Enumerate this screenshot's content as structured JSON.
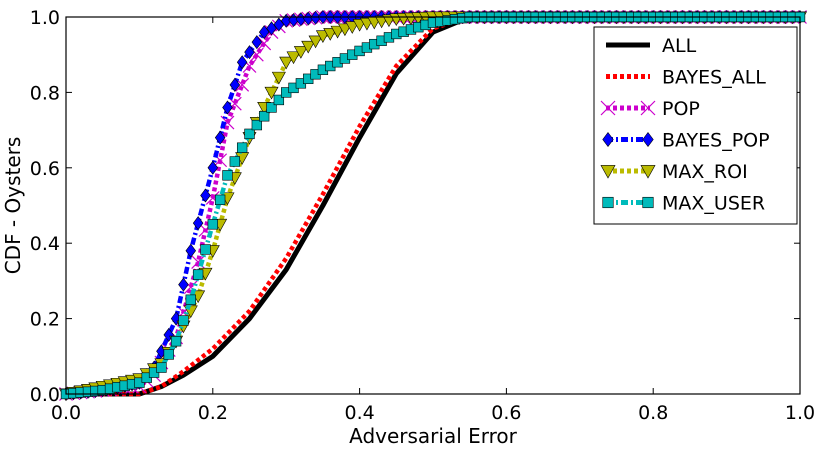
{
  "chart_data": {
    "type": "line",
    "title": "",
    "xlabel": "Adversarial Error",
    "ylabel": "CDF - Oysters",
    "xlim": [
      0.0,
      1.0
    ],
    "ylim": [
      0.0,
      1.0
    ],
    "xticks": [
      "0.0",
      "0.2",
      "0.4",
      "0.6",
      "0.8",
      "1.0"
    ],
    "yticks": [
      "0.0",
      "0.2",
      "0.4",
      "0.6",
      "0.8",
      "1.0"
    ],
    "legend_position": "top-right",
    "series": [
      {
        "name": "ALL",
        "color": "#000000",
        "style": "solid",
        "marker": "none",
        "x": [
          0.0,
          0.05,
          0.1,
          0.13,
          0.16,
          0.2,
          0.25,
          0.3,
          0.35,
          0.4,
          0.45,
          0.5,
          0.55,
          0.6,
          1.0
        ],
        "y": [
          0.0,
          0.0,
          0.0,
          0.02,
          0.05,
          0.1,
          0.2,
          0.33,
          0.5,
          0.68,
          0.85,
          0.96,
          1.0,
          1.0,
          1.0
        ]
      },
      {
        "name": "BAYES_ALL",
        "color": "#ff0000",
        "style": "dotted",
        "marker": "none",
        "x": [
          0.0,
          0.05,
          0.1,
          0.13,
          0.16,
          0.2,
          0.25,
          0.3,
          0.35,
          0.4,
          0.45,
          0.5,
          0.55,
          0.6,
          1.0
        ],
        "y": [
          0.0,
          0.0,
          0.0,
          0.02,
          0.06,
          0.12,
          0.22,
          0.36,
          0.53,
          0.71,
          0.87,
          0.97,
          1.0,
          1.0,
          1.0
        ]
      },
      {
        "name": "POP",
        "color": "#cc00cc",
        "style": "dotted",
        "marker": "x",
        "x": [
          0.0,
          0.05,
          0.1,
          0.12,
          0.15,
          0.18,
          0.2,
          0.22,
          0.25,
          0.28,
          0.3,
          0.35,
          0.4,
          0.45,
          1.0
        ],
        "y": [
          0.0,
          0.01,
          0.02,
          0.05,
          0.15,
          0.35,
          0.52,
          0.72,
          0.87,
          0.96,
          0.99,
          1.0,
          1.0,
          1.0,
          1.0
        ]
      },
      {
        "name": "BAYES_POP",
        "color": "#0000ff",
        "style": "dashdot",
        "marker": "diamond",
        "x": [
          0.0,
          0.05,
          0.1,
          0.12,
          0.15,
          0.17,
          0.2,
          0.22,
          0.24,
          0.27,
          0.3,
          0.35,
          0.4,
          0.45,
          1.0
        ],
        "y": [
          0.0,
          0.01,
          0.03,
          0.07,
          0.2,
          0.38,
          0.6,
          0.76,
          0.88,
          0.96,
          0.99,
          1.0,
          1.0,
          1.0,
          1.0
        ]
      },
      {
        "name": "MAX_ROI",
        "color": "#bbbb00",
        "style": "dotted",
        "marker": "triangle-down",
        "x": [
          0.0,
          0.05,
          0.1,
          0.13,
          0.15,
          0.18,
          0.2,
          0.22,
          0.25,
          0.28,
          0.3,
          0.35,
          0.4,
          0.45,
          0.5,
          0.6,
          1.0
        ],
        "y": [
          0.0,
          0.02,
          0.04,
          0.08,
          0.14,
          0.26,
          0.38,
          0.52,
          0.68,
          0.8,
          0.88,
          0.95,
          0.98,
          0.995,
          1.0,
          1.0,
          1.0
        ]
      },
      {
        "name": "MAX_USER",
        "color": "#00bbbb",
        "style": "dashdot",
        "marker": "square",
        "x": [
          0.0,
          0.05,
          0.1,
          0.13,
          0.15,
          0.17,
          0.2,
          0.22,
          0.25,
          0.28,
          0.3,
          0.35,
          0.4,
          0.45,
          0.5,
          0.55,
          0.6,
          1.0
        ],
        "y": [
          0.0,
          0.01,
          0.03,
          0.07,
          0.14,
          0.25,
          0.45,
          0.58,
          0.69,
          0.76,
          0.8,
          0.86,
          0.91,
          0.955,
          0.985,
          1.0,
          1.0,
          1.0
        ]
      }
    ]
  }
}
